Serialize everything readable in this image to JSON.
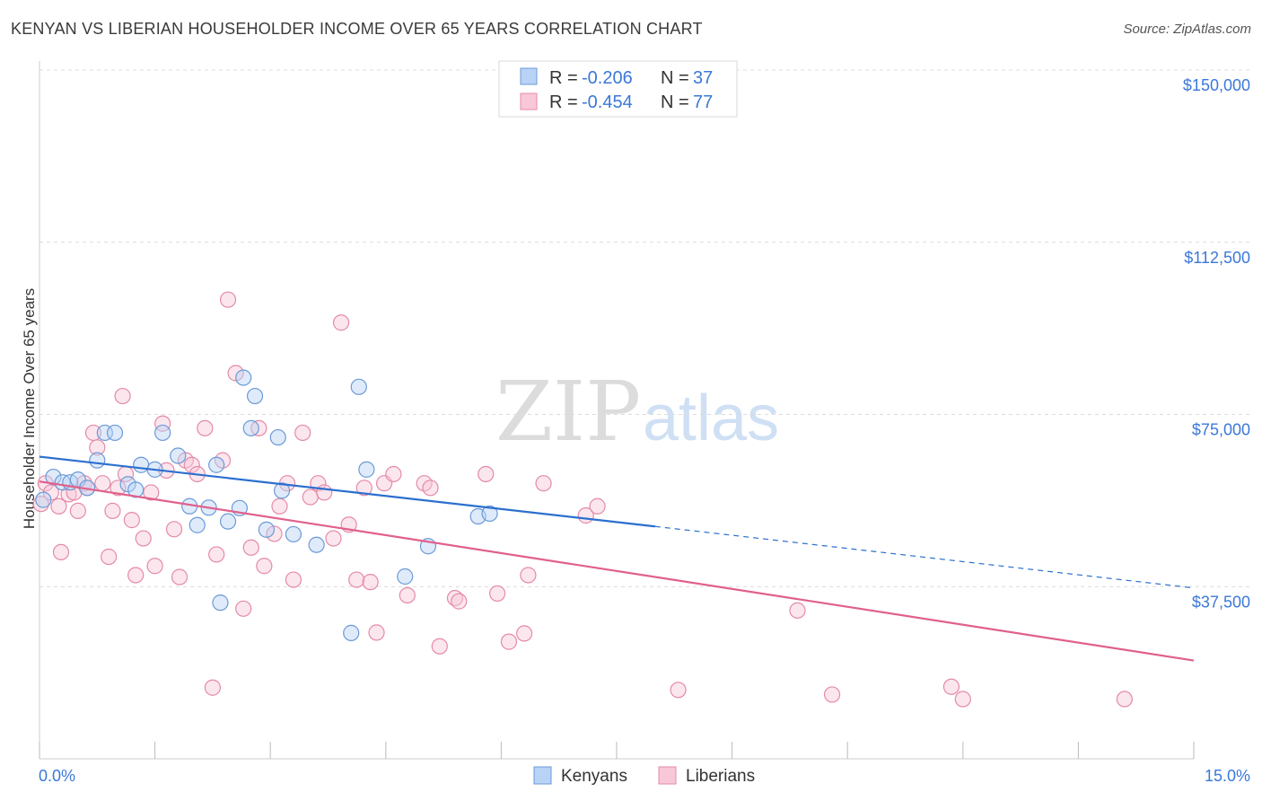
{
  "title": "KENYAN VS LIBERIAN HOUSEHOLDER INCOME OVER 65 YEARS CORRELATION CHART",
  "source": "Source: ZipAtlas.com",
  "watermark": {
    "zip": "ZIP",
    "atlas": "atlas"
  },
  "colors": {
    "kenyan_fill": "#b8d3f5",
    "kenyan_stroke": "#6b9ad8",
    "kenyan_line": "#2b6fcf",
    "liberian_fill": "#f8c8d8",
    "liberian_stroke": "#e48aa8",
    "liberian_line": "#e0608c",
    "value_text": "#3b78d8"
  },
  "legend": {
    "kenyan": {
      "r_label": "R = ",
      "r_value": "-0.206",
      "n_label": "N = ",
      "n_value": "37"
    },
    "liberian": {
      "r_label": "R = ",
      "r_value": "-0.454",
      "n_label": "N = ",
      "n_value": "77"
    }
  },
  "chart_data": {
    "type": "scatter",
    "title": "KENYAN VS LIBERIAN HOUSEHOLDER INCOME OVER 65 YEARS CORRELATION CHART",
    "xlabel": "",
    "ylabel": "Householder Income Over 65 years",
    "xlim": [
      0,
      15
    ],
    "ylim": [
      0,
      150000
    ],
    "x_tick_labels": [
      "0.0%",
      "15.0%"
    ],
    "y_ticks": [
      37500,
      75000,
      112500,
      150000
    ],
    "y_tick_labels": [
      "$37,500",
      "$75,000",
      "$112,500",
      "$150,000"
    ],
    "grid": true,
    "legend_position": "top-center and bottom",
    "series": [
      {
        "name": "Kenyans",
        "x": [
          0.05,
          0.18,
          0.3,
          0.4,
          0.5,
          0.62,
          0.75,
          0.85,
          0.98,
          1.15,
          1.25,
          1.32,
          1.5,
          1.6,
          1.8,
          1.95,
          2.05,
          2.2,
          2.3,
          2.35,
          2.45,
          2.6,
          2.65,
          2.75,
          2.8,
          2.95,
          3.1,
          3.15,
          3.3,
          3.6,
          4.05,
          4.15,
          4.25,
          4.75,
          5.05,
          5.7,
          5.85
        ],
        "y": [
          56400,
          61400,
          60200,
          60200,
          60800,
          59000,
          65000,
          71000,
          71000,
          59800,
          58600,
          64000,
          63000,
          71000,
          66000,
          55000,
          50900,
          54700,
          64000,
          34000,
          51700,
          54600,
          83000,
          72000,
          79000,
          49900,
          70000,
          58400,
          48900,
          46600,
          27400,
          81000,
          63000,
          39700,
          46300,
          52800,
          53400
        ]
      },
      {
        "name": "Liberians",
        "x": [
          0.02,
          0.08,
          0.15,
          0.25,
          0.28,
          0.38,
          0.45,
          0.5,
          0.58,
          0.62,
          0.7,
          0.75,
          0.82,
          0.9,
          0.95,
          1.02,
          1.08,
          1.12,
          1.2,
          1.25,
          1.35,
          1.45,
          1.5,
          1.6,
          1.65,
          1.75,
          1.82,
          1.9,
          1.98,
          2.05,
          2.15,
          2.25,
          2.3,
          2.38,
          2.45,
          2.55,
          2.65,
          2.75,
          2.85,
          2.92,
          3.05,
          3.12,
          3.22,
          3.3,
          3.42,
          3.52,
          3.62,
          3.7,
          3.82,
          3.92,
          4.02,
          4.12,
          4.22,
          4.3,
          4.38,
          4.48,
          4.6,
          4.78,
          5.0,
          5.08,
          5.2,
          5.4,
          5.45,
          5.8,
          5.95,
          6.1,
          6.3,
          6.35,
          6.55,
          7.1,
          7.25,
          8.3,
          9.85,
          10.3,
          11.85,
          12.0,
          14.1
        ],
        "y": [
          55500,
          60000,
          58000,
          55000,
          45000,
          57600,
          58000,
          54000,
          60000,
          59000,
          71000,
          67800,
          60000,
          44000,
          54000,
          59000,
          79000,
          62000,
          52000,
          40000,
          48000,
          58000,
          42000,
          73000,
          62800,
          50000,
          39600,
          65000,
          64000,
          62000,
          72000,
          15500,
          44500,
          65000,
          100000,
          84000,
          32700,
          46000,
          72000,
          42000,
          49000,
          55000,
          60000,
          39000,
          71000,
          57000,
          60000,
          58000,
          48000,
          95000,
          51000,
          39000,
          59000,
          38500,
          27500,
          60000,
          62000,
          35600,
          60000,
          59000,
          24500,
          35000,
          34300,
          62000,
          36000,
          25500,
          27300,
          40000,
          60000,
          53000,
          55000,
          15000,
          32300,
          14000,
          15700,
          13000,
          13000
        ]
      }
    ],
    "trend_lines": [
      {
        "series": "Kenyans",
        "x_start": 0,
        "y_start": 65800,
        "x_solid_end": 8.0,
        "y_solid_end": 50600,
        "x_dashed_end": 15,
        "y_dashed_end": 37200
      },
      {
        "series": "Liberians",
        "x_start": 0,
        "y_start": 60400,
        "x_end": 15,
        "y_end": 21400
      }
    ]
  },
  "bottom_legend": {
    "kenyan_label": "Kenyans",
    "liberian_label": "Liberians"
  }
}
